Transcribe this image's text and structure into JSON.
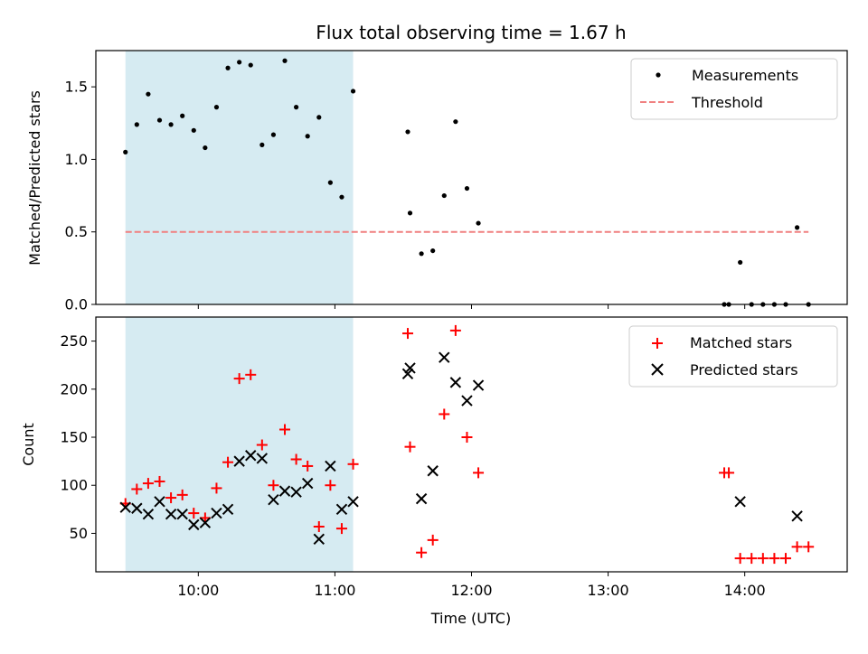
{
  "chart_data": {
    "title": "Flux total observing time = 1.67 h",
    "xlabel": "Time (UTC)",
    "x_ticks": [
      "10:00",
      "11:00",
      "12:00",
      "13:00",
      "14:00"
    ],
    "shaded_region": {
      "start": "09:28",
      "end": "11:08",
      "color": "#add8e6"
    },
    "panels": [
      {
        "type": "scatter",
        "ylabel": "Matched/Predicted stars",
        "ylim": [
          0,
          1.75
        ],
        "y_ticks": [
          "0.0",
          "0.5",
          "1.0",
          "1.5"
        ],
        "series": [
          {
            "name": "Measurements",
            "marker": "dot",
            "color": "#000000",
            "points": [
              [
                "09:28",
                1.05
              ],
              [
                "09:33",
                1.24
              ],
              [
                "09:38",
                1.45
              ],
              [
                "09:43",
                1.27
              ],
              [
                "09:48",
                1.24
              ],
              [
                "09:53",
                1.3
              ],
              [
                "09:58",
                1.2
              ],
              [
                "10:03",
                1.08
              ],
              [
                "10:08",
                1.36
              ],
              [
                "10:13",
                1.63
              ],
              [
                "10:18",
                1.67
              ],
              [
                "10:23",
                1.65
              ],
              [
                "10:28",
                1.1
              ],
              [
                "10:33",
                1.17
              ],
              [
                "10:38",
                1.68
              ],
              [
                "10:43",
                1.36
              ],
              [
                "10:48",
                1.16
              ],
              [
                "10:53",
                1.29
              ],
              [
                "10:58",
                0.84
              ],
              [
                "11:03",
                0.74
              ],
              [
                "11:08",
                1.47
              ],
              [
                "11:32",
                1.19
              ],
              [
                "11:33",
                0.63
              ],
              [
                "11:38",
                0.35
              ],
              [
                "11:43",
                0.37
              ],
              [
                "11:48",
                0.75
              ],
              [
                "11:53",
                1.26
              ],
              [
                "11:58",
                0.8
              ],
              [
                "12:03",
                0.56
              ],
              [
                "13:51",
                0.0
              ],
              [
                "13:53",
                0.0
              ],
              [
                "13:58",
                0.29
              ],
              [
                "14:03",
                0.0
              ],
              [
                "14:08",
                0.0
              ],
              [
                "14:13",
                0.0
              ],
              [
                "14:18",
                0.0
              ],
              [
                "14:23",
                0.53
              ],
              [
                "14:28",
                0.0
              ]
            ]
          },
          {
            "name": "Threshold",
            "style": "dashed",
            "color": "#f08080",
            "points": [
              [
                "09:28",
                0.5
              ],
              [
                "14:28",
                0.5
              ]
            ]
          }
        ],
        "legend": "top-right"
      },
      {
        "type": "scatter",
        "ylabel": "Count",
        "ylim": [
          10,
          275
        ],
        "y_ticks": [
          "50",
          "100",
          "150",
          "200",
          "250"
        ],
        "series": [
          {
            "name": "Matched stars",
            "marker": "plus",
            "color": "#ff0000",
            "points": [
              [
                "09:28",
                81
              ],
              [
                "09:33",
                96
              ],
              [
                "09:38",
                102
              ],
              [
                "09:43",
                104
              ],
              [
                "09:48",
                87
              ],
              [
                "09:53",
                90
              ],
              [
                "09:58",
                71
              ],
              [
                "10:03",
                66
              ],
              [
                "10:08",
                97
              ],
              [
                "10:13",
                124
              ],
              [
                "10:18",
                211
              ],
              [
                "10:23",
                215
              ],
              [
                "10:28",
                142
              ],
              [
                "10:33",
                100
              ],
              [
                "10:38",
                158
              ],
              [
                "10:43",
                127
              ],
              [
                "10:48",
                120
              ],
              [
                "10:53",
                57
              ],
              [
                "10:58",
                100
              ],
              [
                "11:03",
                55
              ],
              [
                "11:08",
                122
              ],
              [
                "11:32",
                258
              ],
              [
                "11:33",
                140
              ],
              [
                "11:38",
                30
              ],
              [
                "11:43",
                43
              ],
              [
                "11:48",
                174
              ],
              [
                "11:53",
                261
              ],
              [
                "11:58",
                150
              ],
              [
                "12:03",
                113
              ],
              [
                "13:51",
                113
              ],
              [
                "13:53",
                113
              ],
              [
                "13:58",
                24
              ],
              [
                "14:03",
                24
              ],
              [
                "14:08",
                24
              ],
              [
                "14:13",
                24
              ],
              [
                "14:18",
                24
              ],
              [
                "14:23",
                36
              ],
              [
                "14:28",
                36
              ]
            ]
          },
          {
            "name": "Predicted stars",
            "marker": "x",
            "color": "#000000",
            "points": [
              [
                "09:28",
                77
              ],
              [
                "09:33",
                76
              ],
              [
                "09:38",
                70
              ],
              [
                "09:43",
                83
              ],
              [
                "09:48",
                70
              ],
              [
                "09:53",
                70
              ],
              [
                "09:58",
                59
              ],
              [
                "10:03",
                61
              ],
              [
                "10:08",
                71
              ],
              [
                "10:13",
                75
              ],
              [
                "10:18",
                125
              ],
              [
                "10:23",
                131
              ],
              [
                "10:28",
                128
              ],
              [
                "10:33",
                85
              ],
              [
                "10:38",
                94
              ],
              [
                "10:43",
                93
              ],
              [
                "10:48",
                102
              ],
              [
                "10:53",
                44
              ],
              [
                "10:58",
                120
              ],
              [
                "11:03",
                75
              ],
              [
                "11:08",
                83
              ],
              [
                "11:32",
                216
              ],
              [
                "11:33",
                222
              ],
              [
                "11:38",
                86
              ],
              [
                "11:43",
                115
              ],
              [
                "11:48",
                233
              ],
              [
                "11:53",
                207
              ],
              [
                "11:58",
                188
              ],
              [
                "12:03",
                204
              ],
              [
                "13:58",
                83
              ],
              [
                "14:23",
                68
              ]
            ]
          }
        ],
        "legend": "top-right"
      }
    ]
  }
}
